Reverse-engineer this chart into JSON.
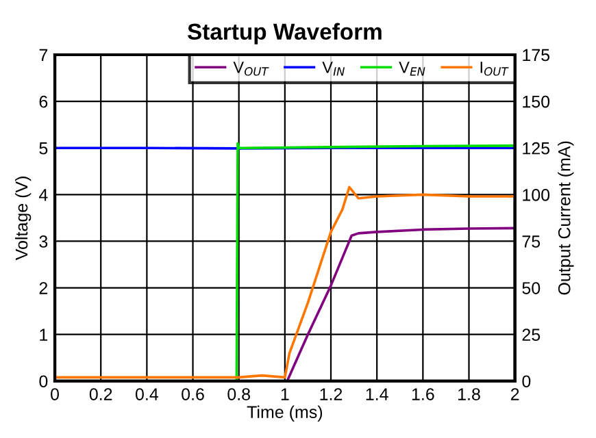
{
  "chart_data": {
    "type": "line",
    "title": "Startup Waveform",
    "xlabel": "Time (ms)",
    "ylabel": "Voltage (V)",
    "y2label": "Output Current (mA)",
    "xlim": [
      0,
      2
    ],
    "xticks": [
      0,
      0.2,
      0.4,
      0.6,
      0.8,
      1,
      1.2,
      1.4,
      1.6,
      1.8,
      2
    ],
    "ylim": [
      0,
      7
    ],
    "yticks": [
      0,
      1,
      2,
      3,
      4,
      5,
      6,
      7
    ],
    "y2lim": [
      0,
      175
    ],
    "y2ticks": [
      0,
      25,
      50,
      75,
      100,
      125,
      150,
      175
    ],
    "grid": true,
    "legend": "top right",
    "marker": "none",
    "line_style": "solid",
    "series": [
      {
        "name": "V$_{OUT}$",
        "color": "#800080",
        "x": [
          0,
          1.01,
          1.1,
          1.2,
          1.29,
          1.32,
          1.4,
          1.6,
          1.8,
          2
        ],
        "values": [
          0,
          0,
          1.0,
          2.05,
          3.12,
          3.17,
          3.2,
          3.25,
          3.27,
          3.28
        ]
      },
      {
        "name": "V$_{IN}$",
        "color": "#0000ff",
        "x": [
          0,
          0.4,
          0.8,
          1.2,
          1.6,
          2
        ],
        "values": [
          5.0,
          5.0,
          4.99,
          5.0,
          5.0,
          5.0
        ]
      },
      {
        "name": "V$_{EN}$",
        "color": "#00dd00",
        "x": [
          0,
          0.79,
          0.795,
          0.8,
          0.82,
          1.2,
          1.6,
          2
        ],
        "values": [
          0,
          0,
          5.1,
          5.0,
          5.0,
          5.02,
          5.04,
          5.05
        ]
      },
      {
        "name": "I$_{OUT}$",
        "color": "#ff7700",
        "axis": "y2",
        "x": [
          0,
          0.2,
          0.4,
          0.6,
          0.8,
          0.9,
          1.0,
          1.02,
          1.1,
          1.2,
          1.25,
          1.28,
          1.32,
          1.4,
          1.6,
          1.8,
          2
        ],
        "values": [
          2,
          2,
          2,
          2,
          2,
          3,
          2,
          15,
          42,
          80,
          92,
          104,
          98,
          99,
          100,
          99,
          99
        ]
      }
    ]
  }
}
